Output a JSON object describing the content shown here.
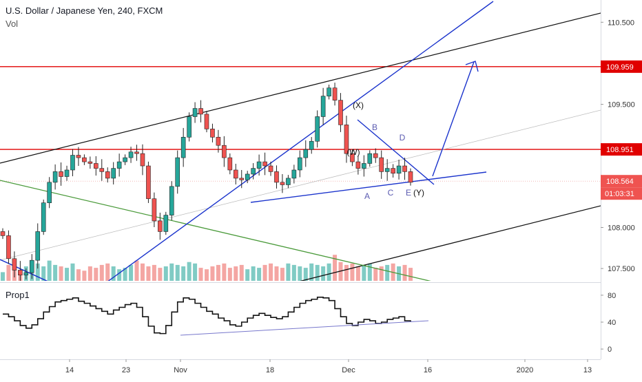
{
  "header": {
    "title": "U.S. Dollar / Japanese Yen, 240, FXCM",
    "vol_label": "Vol"
  },
  "oscillator": {
    "title": "Prop1"
  },
  "colors": {
    "up": "#26a69a",
    "down": "#ef5350",
    "vol_up": "#80cbc4",
    "vol_down": "#f4a6a3",
    "trend_blue": "#1a33cc",
    "resistance_red": "#e00000",
    "channel_black": "#111111",
    "down_channel_green": "#4a9a3a",
    "projection_blue": "#1a33cc",
    "last_price_badge": "#ef5350",
    "resistance_badge": "#e00000",
    "wave_label": "#5a5ab0"
  },
  "chart_data": [
    {
      "type": "candlestick",
      "title": "U.S. Dollar / Japanese Yen, 240, FXCM",
      "y_axis_ticks": [
        "110.500",
        "110.000",
        "109.500",
        "108.000",
        "107.500"
      ],
      "ylim": [
        107.35,
        110.62
      ],
      "x_axis_ticks": [
        "14",
        "23",
        "Nov",
        "18",
        "Dec",
        "16",
        "2020",
        "13"
      ],
      "price_series": [
        107.9,
        107.62,
        107.48,
        107.42,
        107.45,
        107.6,
        107.95,
        108.3,
        108.55,
        108.68,
        108.62,
        108.7,
        108.88,
        108.85,
        108.8,
        108.78,
        108.72,
        108.68,
        108.6,
        108.72,
        108.8,
        108.85,
        108.92,
        108.9,
        108.75,
        108.35,
        108.08,
        107.95,
        108.15,
        108.5,
        108.85,
        109.1,
        109.35,
        109.45,
        109.38,
        109.2,
        109.1,
        109.0,
        108.85,
        108.7,
        108.6,
        108.58,
        108.65,
        108.72,
        108.8,
        108.75,
        108.68,
        108.55,
        108.52,
        108.6,
        108.7,
        108.85,
        108.95,
        109.05,
        109.35,
        109.6,
        109.7,
        109.55,
        109.25,
        108.9,
        108.8,
        108.72,
        108.78,
        108.9,
        108.85,
        108.68,
        108.72,
        108.66,
        108.75,
        108.68,
        108.55
      ],
      "volume_level": [
        0.3,
        0.55,
        0.4,
        0.35,
        0.5,
        0.45,
        0.6,
        0.5,
        0.7,
        0.55,
        0.5,
        0.45,
        0.6,
        0.4,
        0.35,
        0.5,
        0.45,
        0.55,
        0.6,
        0.5,
        0.4,
        0.45,
        0.55,
        0.7,
        0.6,
        0.5,
        0.55,
        0.45,
        0.5,
        0.6,
        0.55,
        0.5,
        0.65,
        0.6,
        0.45,
        0.4,
        0.5,
        0.55,
        0.6,
        0.45,
        0.5,
        0.55,
        0.4,
        0.5,
        0.45,
        0.55,
        0.6,
        0.5,
        0.45,
        0.6,
        0.55,
        0.5,
        0.45,
        0.6,
        0.55,
        0.5,
        0.6,
        0.9,
        0.65,
        0.55,
        0.6,
        0.5,
        0.55,
        0.6,
        0.45,
        0.5,
        0.55,
        0.6,
        0.5,
        0.55,
        0.45
      ],
      "horizontal_levels": [
        {
          "label": "109.959",
          "value": 109.959
        },
        {
          "label": "108.951",
          "value": 108.951
        }
      ],
      "last_price": {
        "label": "108.564",
        "countdown": "01:03:31",
        "value": 108.564
      },
      "wave_labels": [
        "(X)",
        "B",
        "(W)",
        "D",
        "A",
        "C",
        "E",
        "(Y)"
      ]
    },
    {
      "type": "line",
      "title": "Prop1",
      "y_axis_ticks": [
        "80",
        "40",
        "0"
      ],
      "ylim": [
        -5,
        85
      ],
      "series": [
        52,
        48,
        42,
        35,
        31,
        36,
        45,
        55,
        63,
        70,
        72,
        74,
        76,
        71,
        68,
        64,
        60,
        56,
        52,
        58,
        62,
        66,
        68,
        62,
        48,
        34,
        24,
        23,
        35,
        55,
        70,
        76,
        74,
        68,
        62,
        56,
        52,
        46,
        42,
        36,
        34,
        40,
        46,
        50,
        53,
        50,
        47,
        45,
        48,
        55,
        62,
        68,
        72,
        74,
        77,
        76,
        72,
        60,
        48,
        38,
        35,
        40,
        44,
        42,
        38,
        40,
        44,
        46,
        48,
        42,
        40
      ]
    }
  ]
}
